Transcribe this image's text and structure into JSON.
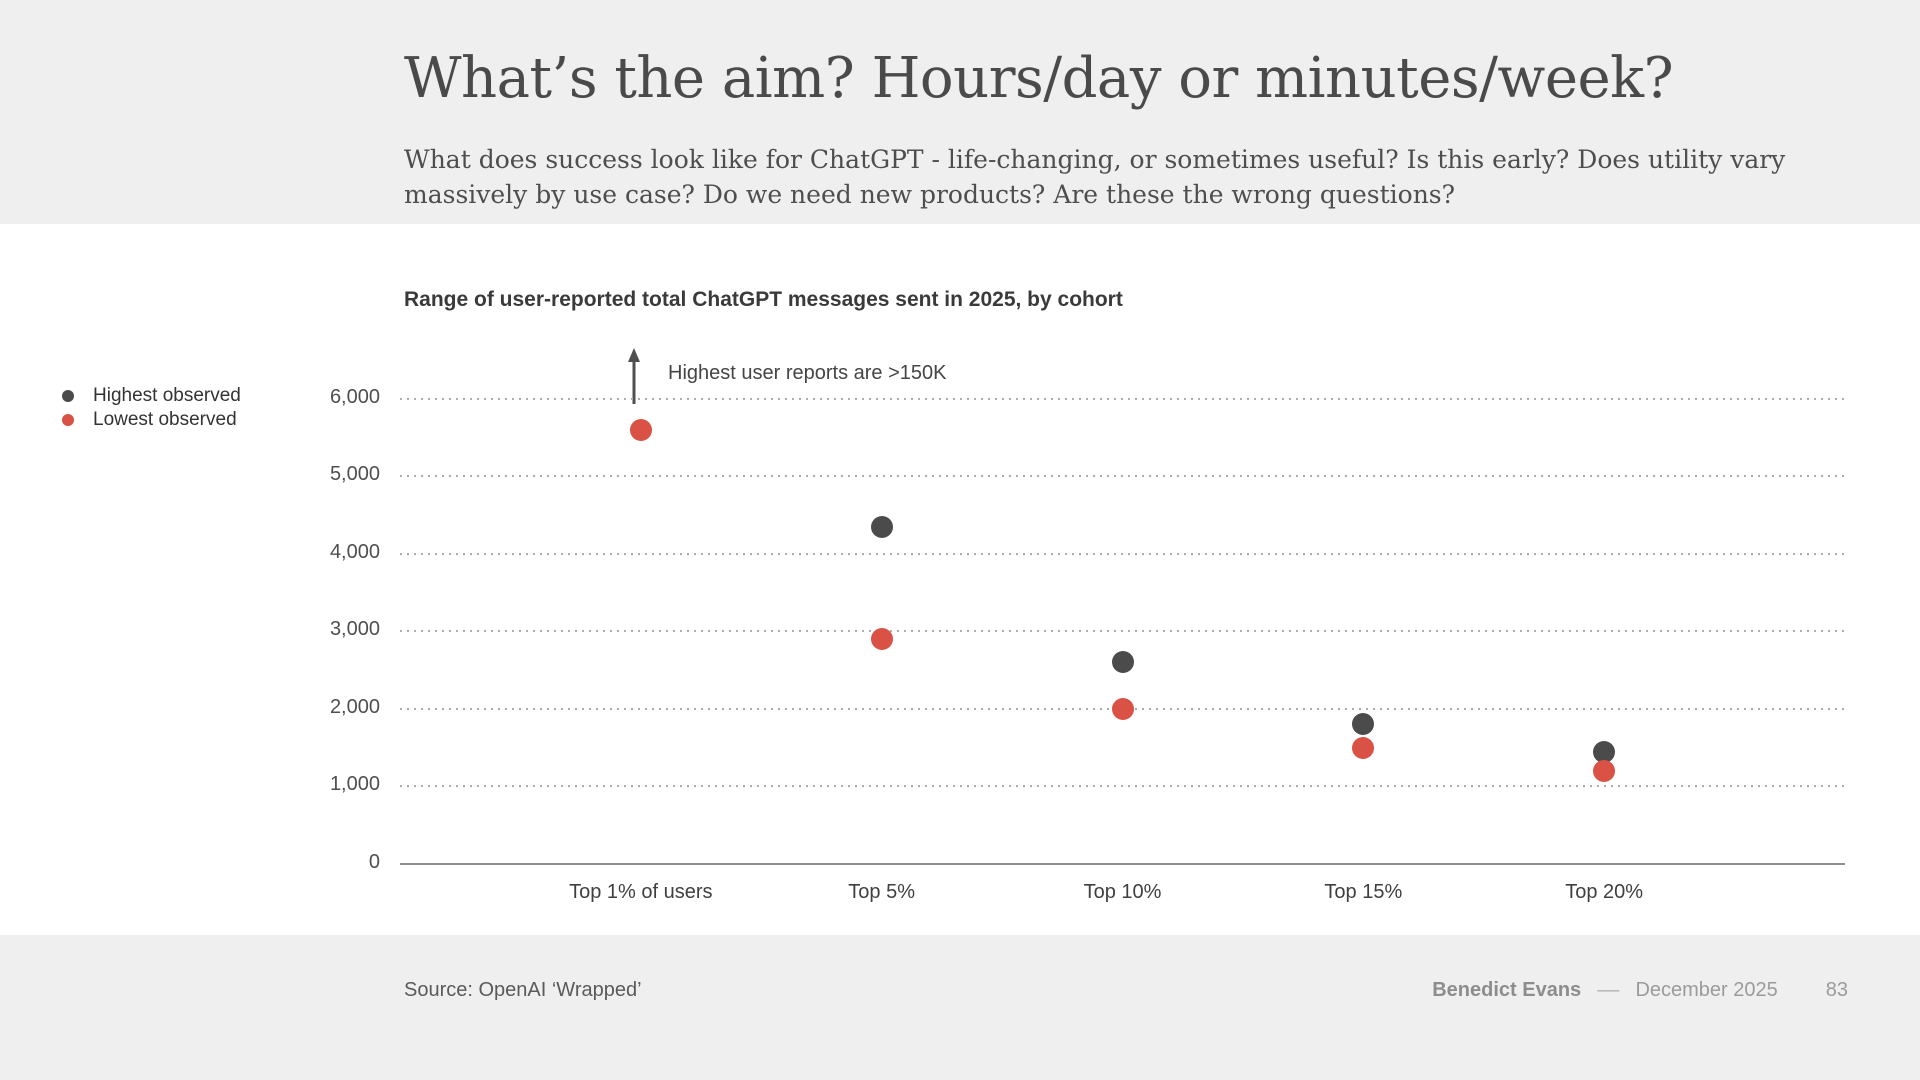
{
  "header": {
    "title": "What’s the aim? Hours/day or minutes/week?",
    "subtitle_lines": [
      "What does success look like for ChatGPT - life-changing, or sometimes useful? Is this early? Does utility vary",
      "massively by use case? Do we need new products? Are these the wrong questions?"
    ]
  },
  "chart": {
    "title": "Range of user-reported total ChatGPT messages sent in 2025, by cohort",
    "legend": [
      {
        "label": "Highest observed",
        "color": "#4b4b4b"
      },
      {
        "label": "Lowest observed",
        "color": "#d95245"
      }
    ],
    "annotation": "Highest user reports are >150K"
  },
  "chart_data": {
    "type": "scatter",
    "title": "Range of user-reported total ChatGPT messages sent in 2025, by cohort",
    "categories": [
      "Top 1% of users",
      "Top 5%",
      "Top 10%",
      "Top 15%",
      "Top 20%"
    ],
    "series": [
      {
        "name": "Highest observed",
        "color": "#4b4b4b",
        "values": [
          null,
          4350,
          2600,
          1800,
          1450
        ]
      },
      {
        "name": "Lowest observed",
        "color": "#d95245",
        "values": [
          5600,
          2900,
          2000,
          1500,
          1200
        ]
      }
    ],
    "yticks": [
      0,
      1000,
      2000,
      3000,
      4000,
      5000,
      6000
    ],
    "ytick_labels": [
      "0",
      "1,000",
      "2,000",
      "3,000",
      "4,000",
      "5,000",
      "6,000"
    ],
    "ylim": [
      0,
      6630
    ],
    "grid": "horizontal dotted",
    "legend_position": "outside left",
    "annotation": "Highest user reports are >150K",
    "annotation_note": "Top 1% highest observed value is above the visible scale, shown by an upward arrow"
  },
  "footer": {
    "source": "Source: OpenAI ‘Wrapped’",
    "author": "Benedict Evans",
    "separator": "––",
    "date": "December 2025",
    "page": "83"
  }
}
